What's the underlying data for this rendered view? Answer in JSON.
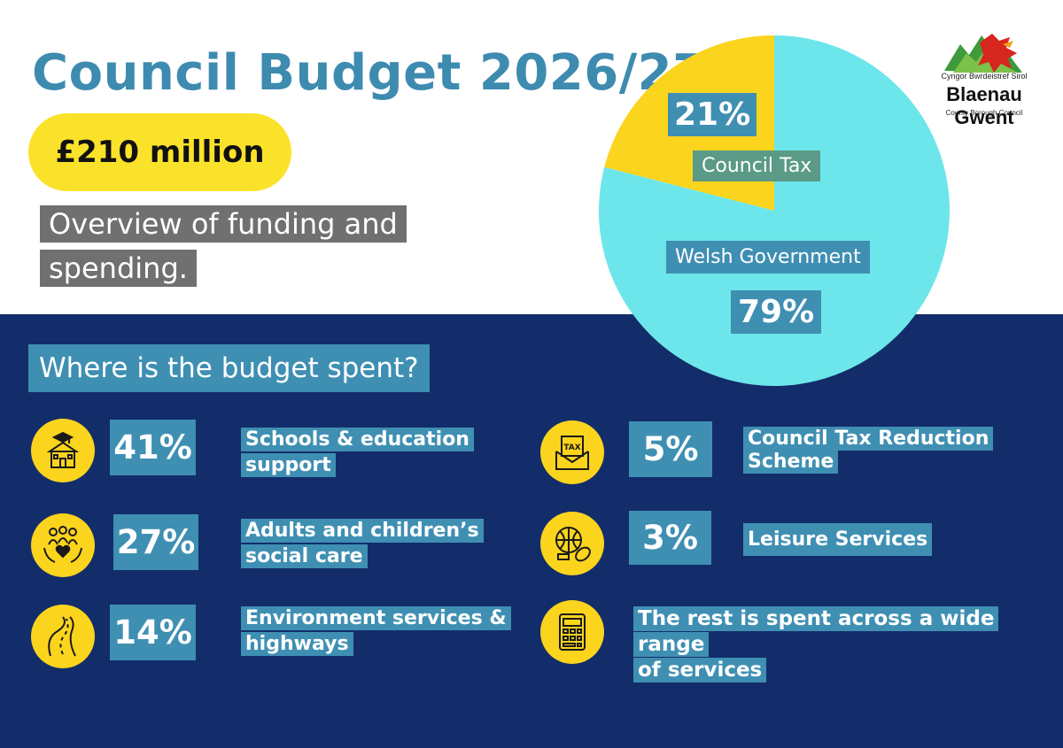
{
  "header": {
    "title": "Council Budget 2026/27",
    "total_budget": "£210 million",
    "subtitle_line1": "Overview of funding and",
    "subtitle_line2": "spending."
  },
  "logo": {
    "welsh_name": "Cyngor Bwrdeistref Sirol",
    "name": "Blaenau Gwent",
    "english_name": "County Borough Council"
  },
  "chart_data": {
    "type": "pie",
    "slices": [
      {
        "label": "Council Tax",
        "value": 21,
        "value_label": "21%",
        "color": "#fbd41e"
      },
      {
        "label": "Welsh Government",
        "value": 79,
        "value_label": "79%",
        "color": "#6ce6ea"
      }
    ]
  },
  "spending": {
    "heading": "Where is the budget spent?",
    "items": [
      {
        "pct": "41%",
        "line1": "Schools & education",
        "line2": "support",
        "icon": "school-icon"
      },
      {
        "pct": "27%",
        "line1": "Adults and children’s",
        "line2": "social care",
        "icon": "family-care-icon"
      },
      {
        "pct": "14%",
        "line1": "Environment services &",
        "line2": "highways",
        "icon": "road-icon"
      },
      {
        "pct": "5%",
        "line1": "Council Tax Reduction",
        "line2": "Scheme",
        "icon": "tax-envelope-icon"
      },
      {
        "pct": "3%",
        "line1": "Leisure Services",
        "line2": "",
        "icon": "sports-equipment-icon"
      },
      {
        "pct": "",
        "line1": "The rest is spent across a wide range",
        "line2": "of services",
        "icon": "calculator-icon"
      }
    ]
  },
  "colors": {
    "title": "#3e8bb0",
    "navy_band": "#132d6a",
    "yellow": "#fbd41e",
    "cyan": "#6ce6ea",
    "label_blue": "#3f8fb3",
    "grey_label": "#707070"
  }
}
